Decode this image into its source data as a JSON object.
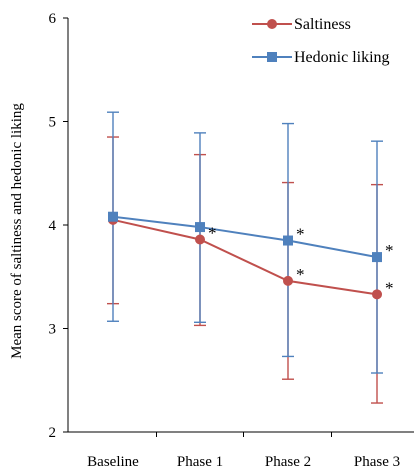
{
  "chart_data": {
    "type": "line",
    "categories": [
      "Baseline",
      "Phase 1",
      "Phase 2",
      "Phase 3"
    ],
    "ylabel": "Mean score of saltiness and hedonic liking",
    "ylim": [
      2,
      6
    ],
    "yticks": [
      "2",
      "3",
      "4",
      "5",
      "6"
    ],
    "legend_position": "top-right",
    "significance_marker": "*",
    "series": [
      {
        "name": "Saltiness",
        "color": "#c0504d",
        "marker": "circle",
        "values": [
          4.05,
          3.86,
          3.46,
          3.33
        ],
        "upper": [
          4.85,
          4.68,
          4.41,
          4.39
        ],
        "lower": [
          3.24,
          3.03,
          2.51,
          2.28
        ],
        "significant": [
          false,
          true,
          true,
          true
        ]
      },
      {
        "name": "Hedonic liking",
        "color": "#4f81bd",
        "marker": "square",
        "values": [
          4.08,
          3.98,
          3.85,
          3.69
        ],
        "upper": [
          5.09,
          4.89,
          4.98,
          4.81
        ],
        "lower": [
          3.07,
          3.06,
          2.73,
          2.57
        ],
        "significant": [
          false,
          false,
          true,
          true
        ]
      }
    ]
  }
}
